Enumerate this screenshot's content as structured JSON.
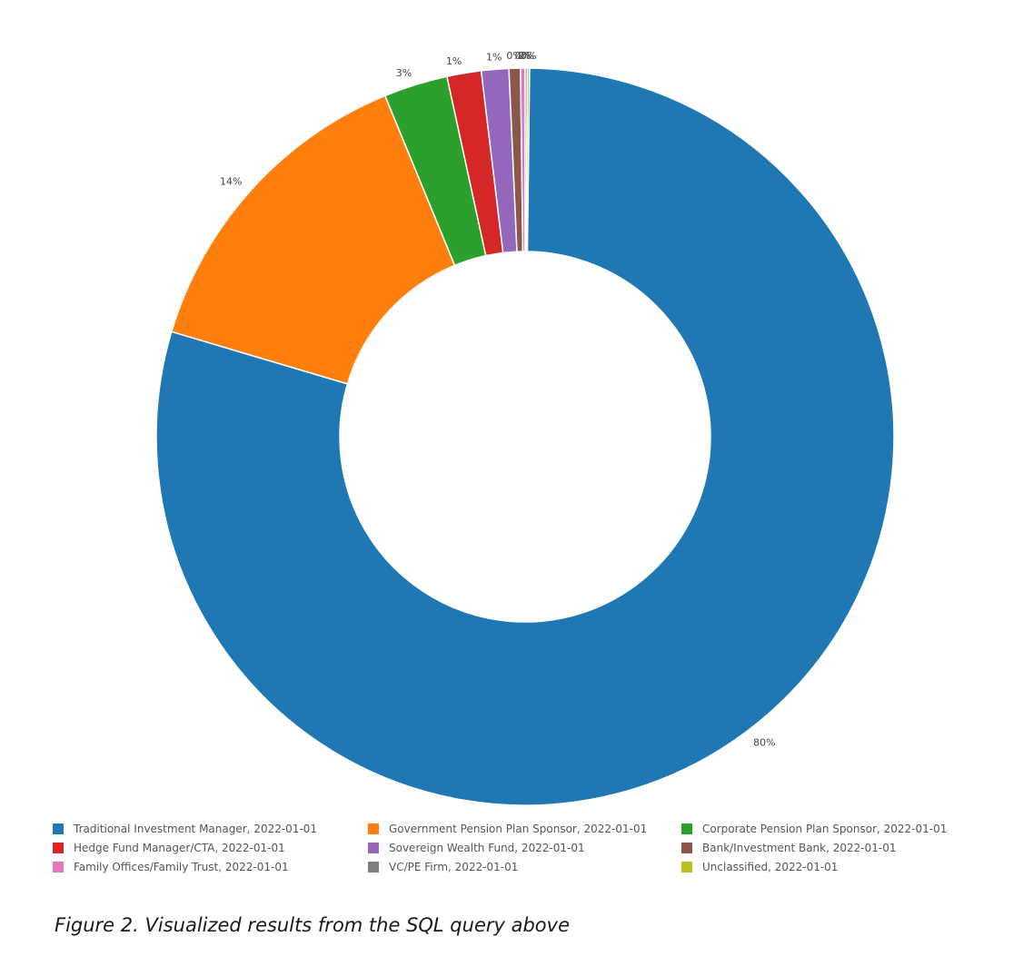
{
  "chart_data": {
    "type": "pie",
    "donut": true,
    "categories": [
      "Traditional Investment Manager, 2022-01-01",
      "Government Pension Plan Sponsor, 2022-01-01",
      "Corporate Pension Plan Sponsor, 2022-01-01",
      "Hedge Fund Manager/CTA, 2022-01-01",
      "Sovereign Wealth Fund, 2022-01-01",
      "Bank/Investment Bank, 2022-01-01",
      "Family Offices/Family Trust, 2022-01-01",
      "VC/PE Firm, 2022-01-01",
      "Unclassified, 2022-01-01"
    ],
    "values": [
      79.6,
      14.2,
      2.8,
      1.5,
      1.2,
      0.5,
      0.2,
      0.0,
      0.0
    ],
    "slice_labels": [
      "80%",
      "14%",
      "3%",
      "1%",
      "1%",
      "0%",
      "0%",
      "0%",
      "0%"
    ],
    "colors": [
      "#1f77b4",
      "#ff7f0e",
      "#2ca02c",
      "#d62728",
      "#9467bd",
      "#8c564b",
      "#e377c2",
      "#7f7f7f",
      "#bcbd22"
    ],
    "legend_position": "bottom"
  },
  "caption": "Figure 2. Visualized results from the SQL query above"
}
